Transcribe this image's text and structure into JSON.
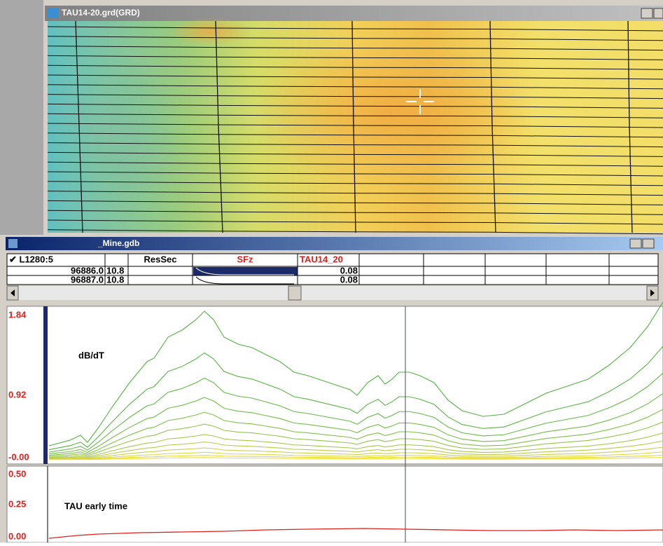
{
  "map_window": {
    "title": "TAU14-20.grd(GRD)"
  },
  "db_window": {
    "title": "_Mine.gdb",
    "table": {
      "header": [
        "✔ L1280:5",
        "ResSec",
        "SFz",
        "TAU14_20"
      ],
      "rows": [
        {
          "fid": "96886.0",
          "value": "10.8",
          "tau": "0.08"
        },
        {
          "fid": "96887.0",
          "value": "10.8",
          "tau": "0.08"
        }
      ]
    }
  },
  "profiles": [
    {
      "label": "dB/dT",
      "axis_labels": [
        "1.84",
        "0.92",
        "-0.00"
      ]
    },
    {
      "label": "TAU early time",
      "axis_labels": [
        "0.50",
        "0.25",
        "0.00"
      ]
    }
  ]
}
